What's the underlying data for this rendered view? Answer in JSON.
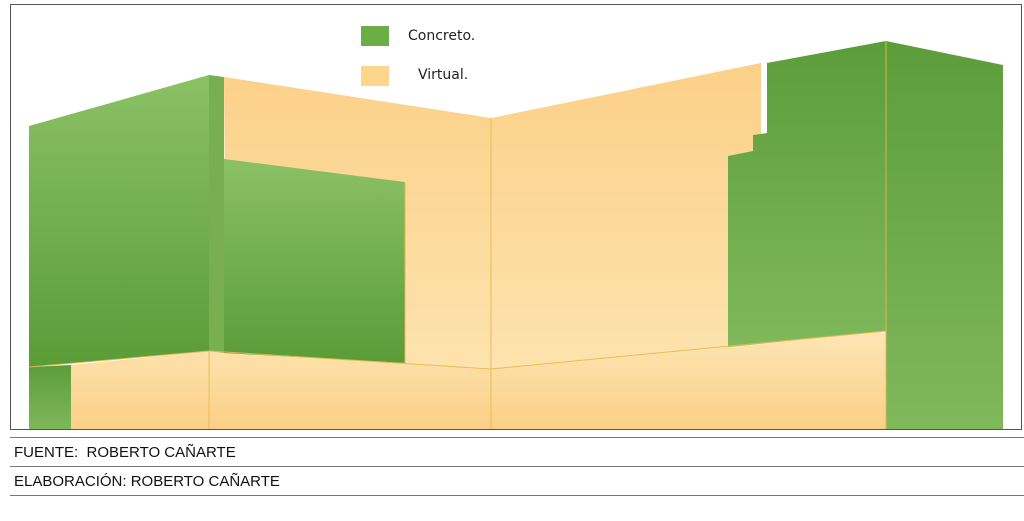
{
  "legend": {
    "items": [
      {
        "label": "Concreto.",
        "color": "#6cad45",
        "meaning": "concrete"
      },
      {
        "label": "Virtual.",
        "color": "#fdd58c",
        "meaning": "virtual"
      }
    ]
  },
  "colors": {
    "concrete_light": "#8bc165",
    "concrete_dark": "#5a9c38",
    "virtual_light": "#fde6b4",
    "virtual_dark": "#fcd088",
    "edge": "#e8b94a"
  },
  "captions": {
    "fuente": "FUENTE:  ROBERTO CAÑARTE",
    "elaboracion": "ELABORACIÓN: ROBERTO CAÑARTE"
  }
}
